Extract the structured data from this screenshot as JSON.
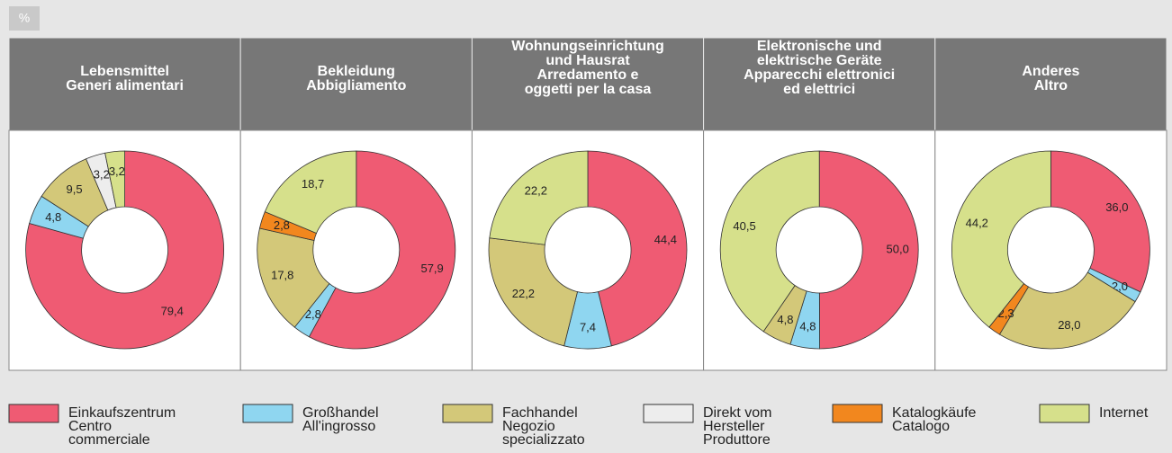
{
  "unit": "%",
  "legend": [
    {
      "name": [
        "Einkaufszentrum",
        "Centro",
        "commerciale"
      ],
      "color": "#ef5b73"
    },
    {
      "name": [
        "Großhandel",
        "All'ingrosso"
      ],
      "color": "#8fd6f0"
    },
    {
      "name": [
        "Fachhandel",
        "Negozio",
        "specializzato"
      ],
      "color": "#d3c879"
    },
    {
      "name": [
        "Direkt vom",
        "Hersteller",
        "Produttore"
      ],
      "color": "#ededed"
    },
    {
      "name": [
        "Katalogkäufe",
        "Catalogo"
      ],
      "color": "#f2871e"
    },
    {
      "name": [
        "Internet"
      ],
      "color": "#d6e08b"
    }
  ],
  "chart_data": [
    {
      "type": "pie",
      "title": [
        "Lebensmittel",
        "Generi alimentari"
      ],
      "values": [
        79.4,
        4.8,
        9.5,
        3.2,
        null,
        3.2
      ],
      "value_labels": [
        "79,4",
        "4,8",
        "9,5",
        "3,2",
        null,
        "3,2"
      ]
    },
    {
      "type": "pie",
      "title": [
        "Bekleidung",
        "Abbigliamento"
      ],
      "values": [
        57.9,
        2.8,
        17.8,
        null,
        2.8,
        18.7
      ],
      "value_labels": [
        "57,9",
        "2,8",
        "17,8",
        null,
        "2,8",
        "18,7"
      ]
    },
    {
      "type": "pie",
      "title": [
        "Wohnungseinrichtung",
        "und Hausrat",
        "Arredamento e",
        "oggetti per la casa"
      ],
      "values": [
        44.4,
        7.4,
        22.2,
        null,
        null,
        22.2
      ],
      "value_labels": [
        "44,4",
        "7,4",
        "22,2",
        null,
        null,
        "22,2"
      ]
    },
    {
      "type": "pie",
      "title": [
        "Elektronische und",
        "elektrische Geräte",
        "Apparecchi elettronici",
        "ed elettrici"
      ],
      "values": [
        50.0,
        4.8,
        4.8,
        null,
        null,
        40.5
      ],
      "value_labels": [
        "50,0",
        "4,8",
        "4,8",
        null,
        null,
        "40,5"
      ]
    },
    {
      "type": "pie",
      "title": [
        "Anderes",
        "Altro"
      ],
      "values": [
        36.0,
        2.0,
        28.0,
        null,
        2.3,
        44.2
      ],
      "value_labels": [
        "36,0",
        "2,0",
        "28,0",
        null,
        "2,3",
        "44,2"
      ]
    }
  ]
}
